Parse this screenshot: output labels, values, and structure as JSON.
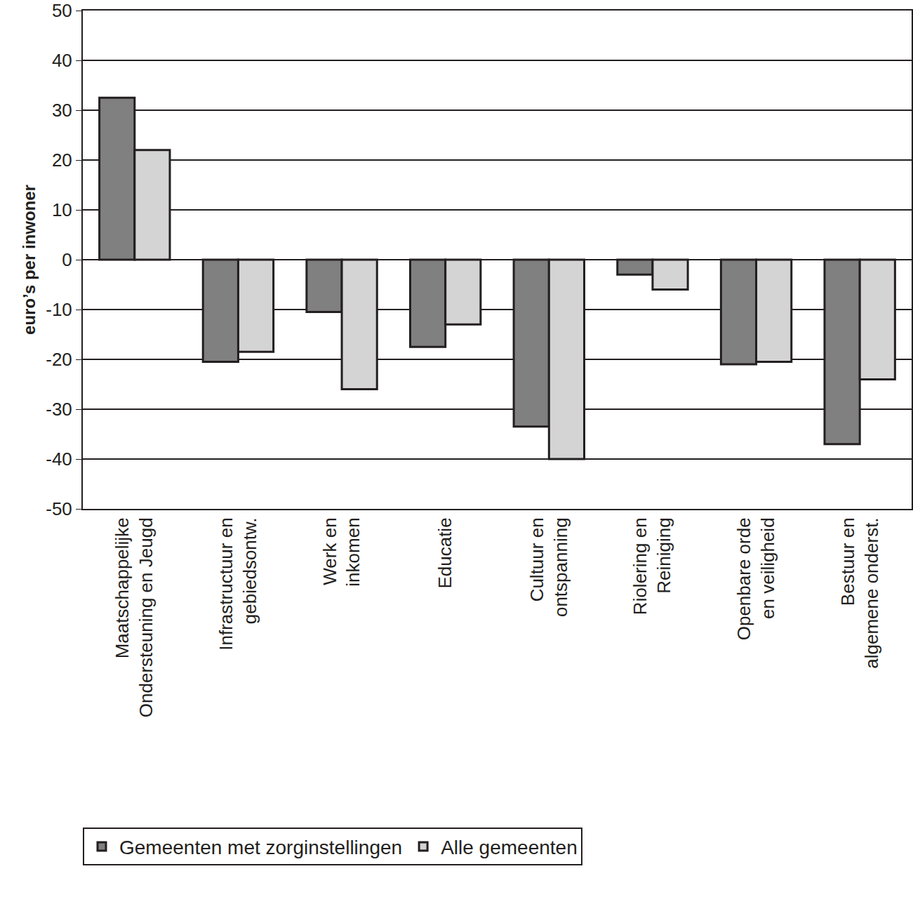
{
  "chart_data": {
    "type": "bar",
    "y_label": "euro’s per inwoner",
    "categories": [
      "Maatschappelijke\nOndersteuning en Jeugd",
      "Infrastructuur en\ngebiedsontw.",
      "Werk en\ninkomen",
      "Educatie",
      "Cultuur en\nontspanning",
      "Riolering en\nReiniging",
      "Openbare orde\nen veiligheid",
      "Bestuur en\nalgemene onderst."
    ],
    "series": [
      {
        "name": "Gemeenten met zorginstellingen",
        "color": "#808080",
        "values": [
          32.5,
          -20.5,
          -10.5,
          -17.5,
          -33.5,
          -3,
          -21,
          -37
        ]
      },
      {
        "name": "Alle gemeenten",
        "color": "#d4d4d4",
        "values": [
          22,
          -18.5,
          -26,
          -13,
          -40,
          -6,
          -20.5,
          -24
        ]
      }
    ],
    "ylim": [
      -50,
      50
    ],
    "yticks": [
      -50,
      -40,
      -30,
      -20,
      -10,
      0,
      10,
      20,
      30,
      40,
      50
    ],
    "grid": true,
    "legend": "bottom"
  }
}
